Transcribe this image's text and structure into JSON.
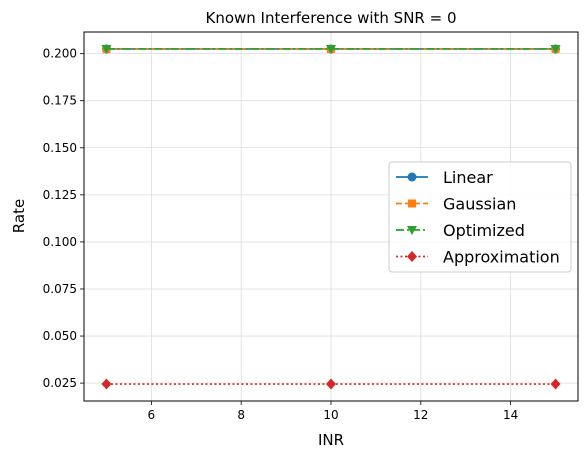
{
  "chart_data": {
    "type": "line",
    "title": "Known Interference with SNR = 0",
    "xlabel": "INR",
    "ylabel": "Rate",
    "x": [
      5,
      10,
      15
    ],
    "xlim": [
      4.5,
      15.5
    ],
    "ylim": [
      0.0155,
      0.2115
    ],
    "xticks": [
      6,
      8,
      10,
      12,
      14
    ],
    "yticks": [
      0.025,
      0.05,
      0.075,
      0.1,
      0.125,
      0.15,
      0.175,
      0.2
    ],
    "xtick_labels": [
      "6",
      "8",
      "10",
      "12",
      "14"
    ],
    "ytick_labels": [
      "0.025",
      "0.050",
      "0.075",
      "0.100",
      "0.125",
      "0.150",
      "0.175",
      "0.200"
    ],
    "grid": true,
    "legend_position": "right",
    "series": [
      {
        "name": "Linear",
        "values": [
          0.2025,
          0.2025,
          0.2025
        ],
        "color": "#1f77b4",
        "linestyle": "solid",
        "marker": "circle"
      },
      {
        "name": "Gaussian",
        "values": [
          0.2025,
          0.2025,
          0.2025
        ],
        "color": "#ff7f0e",
        "linestyle": "dashed",
        "marker": "square"
      },
      {
        "name": "Optimized",
        "values": [
          0.2025,
          0.2025,
          0.2025
        ],
        "color": "#2ca02c",
        "linestyle": "dashdot",
        "marker": "triangle-down"
      },
      {
        "name": "Approximation",
        "values": [
          0.0245,
          0.0245,
          0.0245
        ],
        "color": "#d62728",
        "linestyle": "dotted",
        "marker": "diamond"
      }
    ]
  }
}
